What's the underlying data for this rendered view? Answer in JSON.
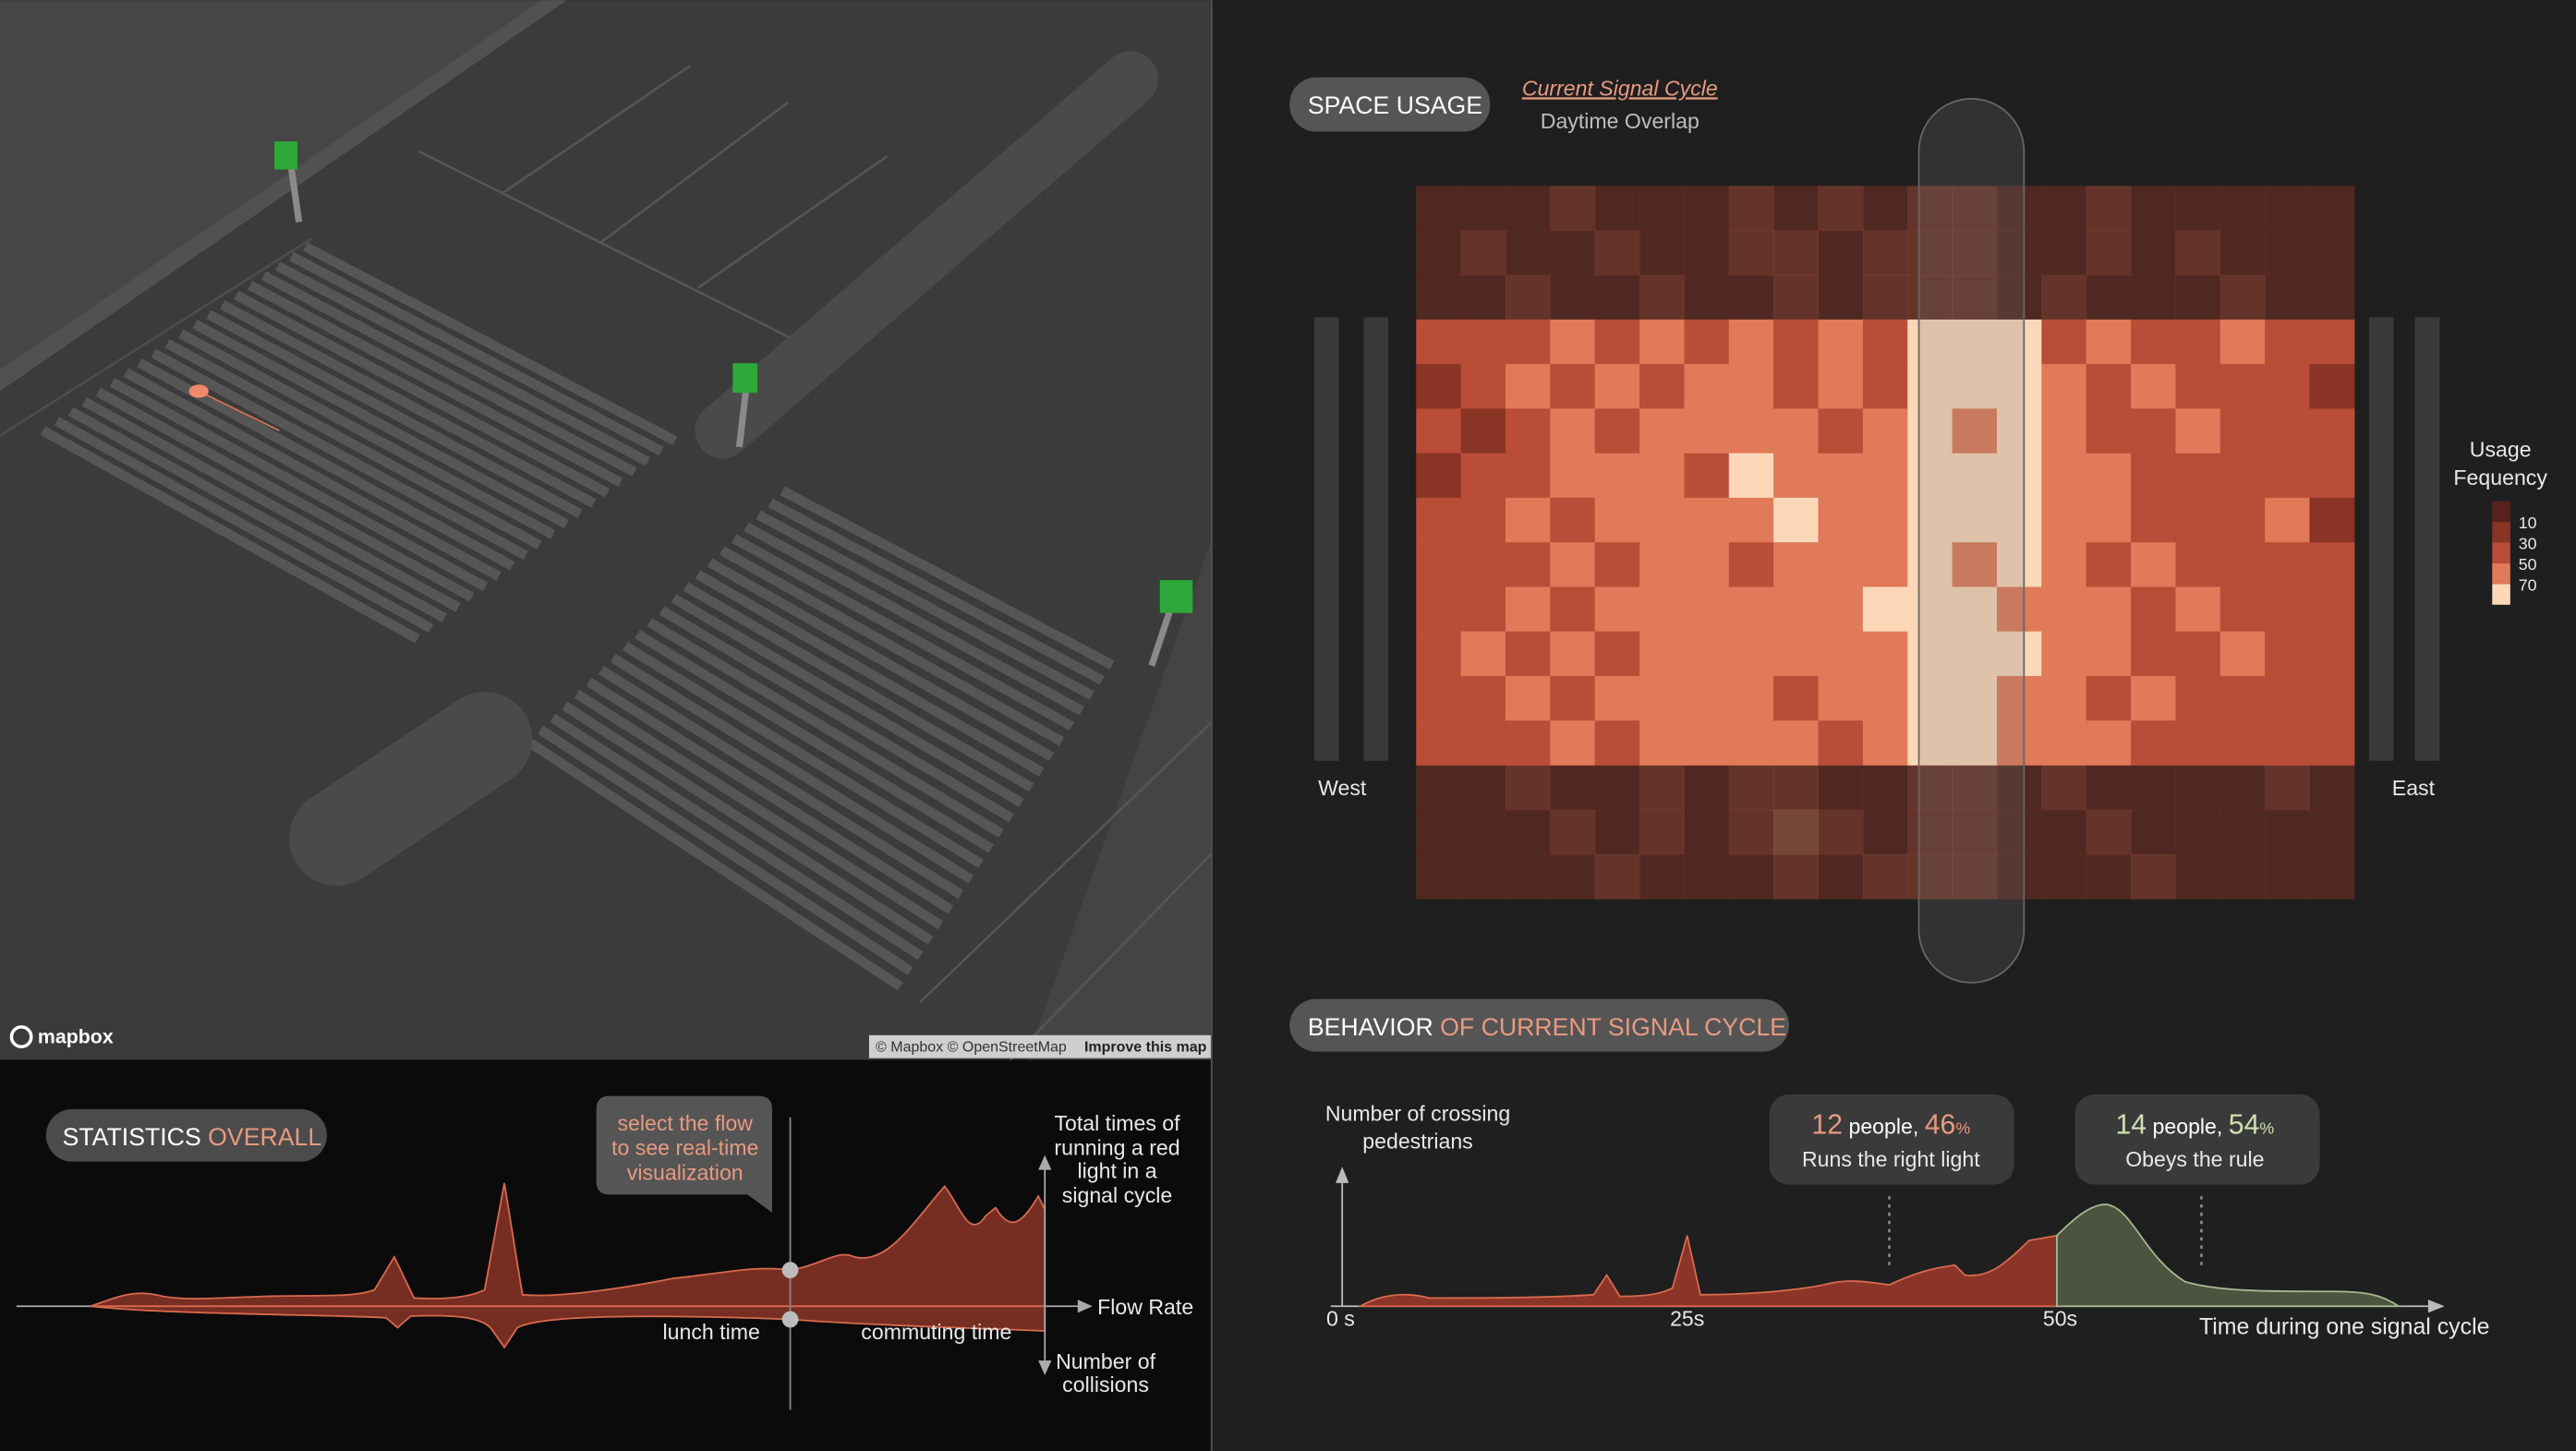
{
  "map": {
    "logo": "mapbox",
    "attribution": "© Mapbox © OpenStreetMap",
    "improve": "Improve this map"
  },
  "statistics": {
    "title": "STATISTICS",
    "title_accent": "OVERALL",
    "tooltip": [
      "select the flow",
      "to see real-time",
      "visualization"
    ],
    "y_label": [
      "Total times of",
      "running a red",
      "light in a",
      "signal cycle"
    ],
    "x_label": "Flow Rate",
    "y_down_label": [
      "Number of",
      "collisions"
    ],
    "annotations": [
      "lunch time",
      "commuting time"
    ]
  },
  "space_usage": {
    "title": "SPACE USAGE",
    "tabs": [
      "Current Signal Cycle",
      "Daytime Overlap"
    ],
    "west": "West",
    "east": "East",
    "legend": {
      "title": [
        "Usage",
        "Fequency"
      ],
      "ticks": [
        10,
        30,
        50,
        70
      ],
      "colors": [
        "#5a211c",
        "#8a3426",
        "#b94d37",
        "#e07a58",
        "#fcd8b8"
      ]
    },
    "heatmap": [
      [
        15,
        22,
        18,
        30,
        12,
        25,
        20,
        35,
        28,
        45,
        20,
        30,
        38,
        25,
        18,
        30,
        22,
        15,
        28,
        20,
        12
      ],
      [
        20,
        30,
        25,
        18,
        35,
        22,
        28,
        40,
        30,
        25,
        35,
        45,
        30,
        28,
        22,
        35,
        18,
        30,
        25,
        15,
        20
      ],
      [
        12,
        25,
        35,
        28,
        20,
        30,
        18,
        25,
        38,
        22,
        30,
        40,
        35,
        25,
        30,
        20,
        28,
        22,
        35,
        18,
        25
      ],
      [
        30,
        45,
        38,
        55,
        42,
        60,
        48,
        65,
        40,
        52,
        35,
        75,
        85,
        70,
        45,
        50,
        38,
        42,
        55,
        30,
        35
      ],
      [
        25,
        38,
        50,
        45,
        58,
        40,
        62,
        55,
        48,
        60,
        45,
        80,
        78,
        72,
        50,
        42,
        55,
        35,
        40,
        48,
        28
      ],
      [
        35,
        28,
        42,
        55,
        48,
        65,
        52,
        60,
        55,
        45,
        62,
        72,
        68,
        75,
        58,
        48,
        40,
        52,
        30,
        42,
        38
      ],
      [
        28,
        45,
        35,
        50,
        62,
        55,
        48,
        70,
        52,
        65,
        50,
        85,
        75,
        70,
        62,
        55,
        45,
        38,
        48,
        35,
        30
      ],
      [
        40,
        32,
        55,
        45,
        58,
        62,
        50,
        65,
        75,
        58,
        55,
        70,
        80,
        72,
        52,
        60,
        48,
        42,
        35,
        50,
        28
      ],
      [
        32,
        48,
        42,
        52,
        45,
        55,
        60,
        48,
        62,
        50,
        58,
        82,
        68,
        75,
        55,
        45,
        52,
        38,
        48,
        30,
        42
      ],
      [
        38,
        42,
        55,
        48,
        60,
        52,
        58,
        65,
        55,
        62,
        72,
        75,
        82,
        68,
        58,
        50,
        45,
        55,
        40,
        48,
        35
      ],
      [
        30,
        50,
        45,
        55,
        48,
        62,
        55,
        52,
        60,
        68,
        55,
        78,
        85,
        72,
        60,
        55,
        48,
        42,
        52,
        38,
        32
      ],
      [
        42,
        35,
        52,
        45,
        58,
        50,
        62,
        55,
        48,
        60,
        52,
        72,
        78,
        65,
        55,
        48,
        58,
        45,
        38,
        45,
        40
      ],
      [
        35,
        45,
        40,
        52,
        48,
        55,
        50,
        58,
        52,
        45,
        58,
        70,
        75,
        62,
        50,
        55,
        42,
        48,
        40,
        35,
        30
      ],
      [
        18,
        25,
        30,
        22,
        28,
        35,
        20,
        30,
        45,
        25,
        28,
        38,
        30,
        22,
        30,
        25,
        18,
        28,
        22,
        30,
        15
      ],
      [
        22,
        15,
        28,
        35,
        20,
        30,
        25,
        40,
        50,
        30,
        22,
        30,
        35,
        28,
        18,
        30,
        25,
        20,
        28,
        18,
        25
      ],
      [
        15,
        28,
        20,
        25,
        30,
        18,
        28,
        22,
        30,
        25,
        30,
        45,
        30,
        25,
        22,
        18,
        30,
        25,
        15,
        22,
        20
      ]
    ]
  },
  "behavior": {
    "title": "BEHAVIOR",
    "title_accent": "OF CURRENT SIGNAL CYCLE",
    "y_label": [
      "Number of crossing",
      "pedestrians"
    ],
    "callouts": [
      {
        "count": 12,
        "unit": "people,",
        "share": 46,
        "share_unit": "%",
        "text": "Runs the right light"
      },
      {
        "count": 14,
        "unit": "people,",
        "share": 54,
        "share_unit": "%",
        "text": "Obeys the rule"
      }
    ],
    "x_ticks": [
      "0 s",
      "25s",
      "50s"
    ],
    "x_label": "Time during one signal cycle"
  }
}
